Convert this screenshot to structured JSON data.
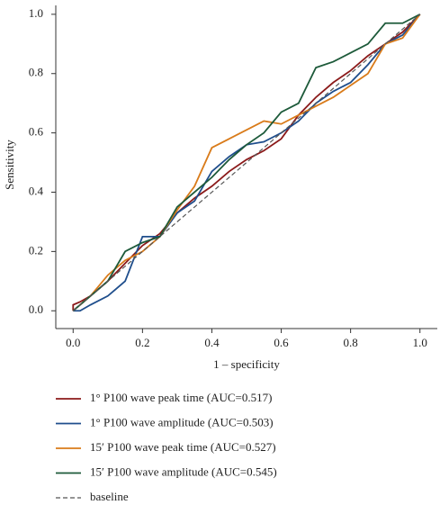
{
  "chart_data": {
    "type": "line",
    "xlabel": "1 – specificity",
    "ylabel": "Sensitivity",
    "xlim": [
      -0.05,
      1.05
    ],
    "ylim": [
      -0.06,
      1.03
    ],
    "xticks": [
      {
        "value": 0,
        "label": "0.0"
      },
      0.2,
      0.4,
      0.6,
      0.8,
      {
        "value": 1,
        "label": "1.0"
      }
    ],
    "yticks": [
      {
        "value": 0,
        "label": "0.0"
      },
      0.2,
      0.4,
      0.6,
      0.8,
      {
        "value": 1,
        "label": "1.0"
      }
    ],
    "series": [
      {
        "name": "1° P100 wave peak time (AUC=0.517)",
        "color": "#8b1a1a",
        "x": [
          0,
          0,
          0.02,
          0.05,
          0.1,
          0.15,
          0.2,
          0.25,
          0.3,
          0.35,
          0.4,
          0.45,
          0.5,
          0.55,
          0.6,
          0.65,
          0.7,
          0.75,
          0.8,
          0.85,
          0.9,
          0.95,
          1
        ],
        "values": [
          0,
          0.02,
          0.03,
          0.05,
          0.1,
          0.16,
          0.22,
          0.26,
          0.33,
          0.38,
          0.42,
          0.47,
          0.51,
          0.54,
          0.58,
          0.66,
          0.72,
          0.77,
          0.81,
          0.86,
          0.9,
          0.94,
          1
        ]
      },
      {
        "name": "1° P100 wave amplitude (AUC=0.503)",
        "color": "#1f4e8c",
        "x": [
          0,
          0.02,
          0.05,
          0.1,
          0.15,
          0.2,
          0.25,
          0.3,
          0.35,
          0.4,
          0.45,
          0.5,
          0.55,
          0.6,
          0.65,
          0.7,
          0.75,
          0.8,
          0.85,
          0.9,
          0.95,
          1
        ],
        "values": [
          0,
          0,
          0.02,
          0.05,
          0.1,
          0.25,
          0.25,
          0.33,
          0.37,
          0.47,
          0.52,
          0.56,
          0.57,
          0.6,
          0.64,
          0.7,
          0.74,
          0.77,
          0.83,
          0.9,
          0.93,
          1
        ]
      },
      {
        "name": "15′ P100 wave peak time (AUC=0.527)",
        "color": "#d97b1a",
        "x": [
          0,
          0.02,
          0.05,
          0.1,
          0.15,
          0.2,
          0.25,
          0.3,
          0.35,
          0.4,
          0.45,
          0.5,
          0.55,
          0.6,
          0.65,
          0.7,
          0.75,
          0.8,
          0.85,
          0.9,
          0.95,
          1
        ],
        "values": [
          0,
          0.02,
          0.05,
          0.12,
          0.17,
          0.2,
          0.25,
          0.34,
          0.42,
          0.55,
          0.58,
          0.61,
          0.64,
          0.63,
          0.66,
          0.69,
          0.72,
          0.76,
          0.8,
          0.9,
          0.92,
          1
        ]
      },
      {
        "name": "15′ P100 wave amplitude (AUC=0.545)",
        "color": "#1d5a3a",
        "x": [
          0,
          0.02,
          0.05,
          0.1,
          0.15,
          0.2,
          0.25,
          0.3,
          0.35,
          0.4,
          0.45,
          0.5,
          0.55,
          0.6,
          0.65,
          0.7,
          0.75,
          0.8,
          0.85,
          0.9,
          0.95,
          1
        ],
        "values": [
          0,
          0.02,
          0.05,
          0.1,
          0.2,
          0.23,
          0.25,
          0.35,
          0.4,
          0.45,
          0.51,
          0.56,
          0.6,
          0.67,
          0.7,
          0.82,
          0.84,
          0.87,
          0.9,
          0.97,
          0.97,
          1
        ]
      },
      {
        "name": "baseline",
        "color": "#555555",
        "dashed": true,
        "x": [
          0,
          1
        ],
        "values": [
          0,
          1
        ]
      }
    ]
  }
}
